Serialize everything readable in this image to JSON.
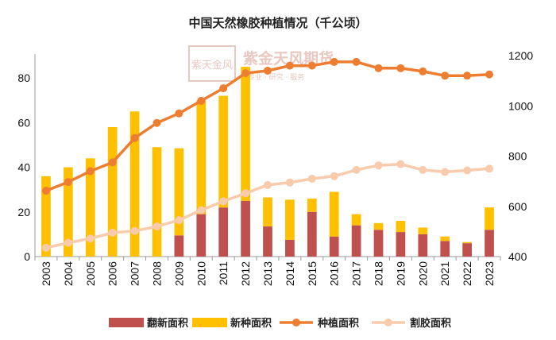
{
  "chart_data": {
    "type": "bar",
    "title": "中国天然橡胶种植情况（千公顷）",
    "categories": [
      "2003",
      "2004",
      "2005",
      "2006",
      "2007",
      "2008",
      "2009",
      "2010",
      "2011",
      "2012",
      "2013",
      "2014",
      "2015",
      "2016",
      "2017",
      "2018",
      "2019",
      "2020",
      "2021",
      "2022",
      "2023"
    ],
    "bar_series": [
      {
        "name": "翻新面积",
        "color": "#c0504d",
        "values": [
          0,
          0,
          0,
          0,
          0,
          0,
          9.5,
          19,
          22,
          25,
          13.5,
          7.5,
          20,
          9,
          14,
          12,
          11,
          10,
          7,
          6,
          12
        ]
      },
      {
        "name": "新种面积",
        "color": "#ffc000",
        "values": [
          36,
          40,
          44,
          58,
          65,
          49,
          39,
          51,
          50,
          60,
          13,
          18,
          6,
          20,
          5,
          3,
          5,
          3,
          2,
          0.5,
          10
        ]
      }
    ],
    "line_series": [
      {
        "name": "种植面积",
        "color": "#ed7d31",
        "axis": "right",
        "values": [
          662,
          697,
          740,
          775,
          872,
          932,
          970,
          1020,
          1070,
          1130,
          1140,
          1160,
          1160,
          1175,
          1175,
          1150,
          1150,
          1137,
          1120,
          1120,
          1125
        ]
      },
      {
        "name": "割胶面积",
        "color": "#f8cbad",
        "axis": "right",
        "values": [
          435,
          455,
          472,
          495,
          502,
          520,
          545,
          585,
          620,
          652,
          685,
          695,
          710,
          720,
          745,
          763,
          768,
          745,
          737,
          743,
          750
        ]
      }
    ],
    "y_left": {
      "min": 0,
      "max": 90,
      "ticks": [
        0,
        20,
        40,
        60,
        80
      ]
    },
    "y_right": {
      "min": 400,
      "max": 1200,
      "ticks": [
        400,
        600,
        800,
        1000,
        1200
      ]
    },
    "grid": false,
    "legend": "bottom"
  },
  "watermark": {
    "seal": "紫天金风",
    "name": "紫金天风期货",
    "sub": "专业 · 研究 · 服务"
  }
}
